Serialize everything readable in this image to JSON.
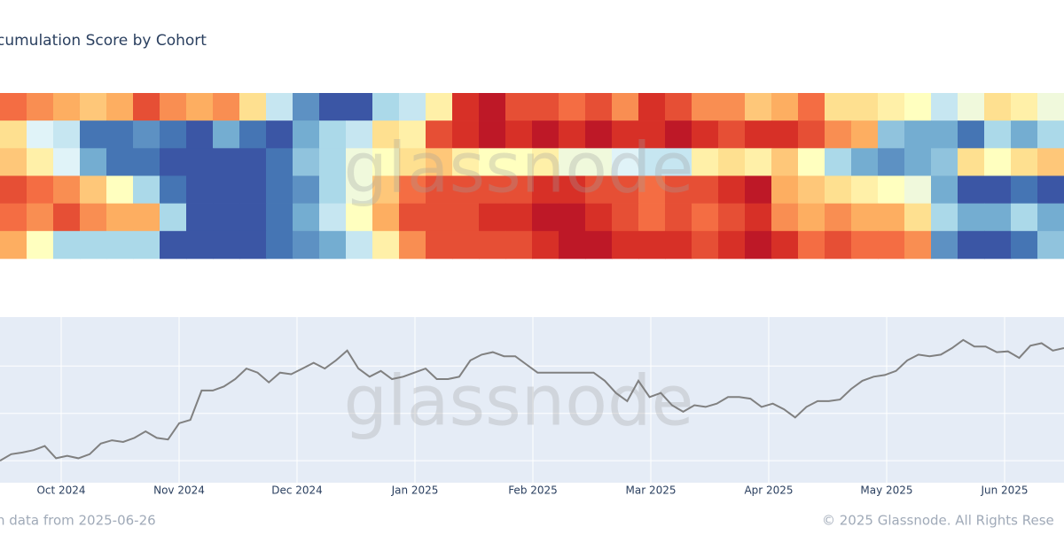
{
  "chart_data": [
    {
      "type": "heatmap",
      "title": "cumulation Score by Cohort",
      "watermark": "glassnode",
      "colorscale": [
        "#313695",
        "#4575b4",
        "#74add1",
        "#abd9e9",
        "#e0f3f8",
        "#ffffbf",
        "#fee090",
        "#fdae61",
        "#f46d43",
        "#d73027",
        "#a50026"
      ],
      "zlim": [
        0,
        1
      ],
      "z": [
        [
          0.8,
          0.75,
          0.7,
          0.65,
          0.7,
          0.85,
          0.75,
          0.7,
          0.75,
          0.6,
          0.35,
          0.15,
          0.05,
          0.05,
          0.3,
          0.35,
          0.55,
          0.9,
          0.95,
          0.85,
          0.85,
          0.8,
          0.85,
          0.75,
          0.9,
          0.85,
          0.75,
          0.75,
          0.65,
          0.7,
          0.8,
          0.6,
          0.6,
          0.55,
          0.5,
          0.35,
          0.45,
          0.6,
          0.55,
          0.45
        ],
        [
          0.6,
          0.4,
          0.35,
          0.1,
          0.1,
          0.15,
          0.1,
          0.05,
          0.2,
          0.1,
          0.05,
          0.2,
          0.3,
          0.35,
          0.6,
          0.55,
          0.85,
          0.9,
          0.95,
          0.9,
          0.95,
          0.9,
          0.95,
          0.9,
          0.9,
          0.95,
          0.9,
          0.85,
          0.9,
          0.9,
          0.85,
          0.75,
          0.7,
          0.25,
          0.2,
          0.2,
          0.1,
          0.3,
          0.2,
          0.3
        ],
        [
          0.65,
          0.55,
          0.4,
          0.2,
          0.1,
          0.1,
          0.05,
          0.05,
          0.05,
          0.05,
          0.1,
          0.25,
          0.3,
          0.45,
          0.5,
          0.6,
          0.65,
          0.55,
          0.5,
          0.5,
          0.55,
          0.45,
          0.45,
          0.4,
          0.35,
          0.35,
          0.55,
          0.6,
          0.55,
          0.65,
          0.5,
          0.3,
          0.2,
          0.15,
          0.2,
          0.25,
          0.6,
          0.5,
          0.6,
          0.65
        ],
        [
          0.85,
          0.8,
          0.75,
          0.65,
          0.5,
          0.3,
          0.1,
          0.05,
          0.05,
          0.05,
          0.1,
          0.15,
          0.3,
          0.45,
          0.65,
          0.8,
          0.85,
          0.85,
          0.85,
          0.85,
          0.9,
          0.9,
          0.85,
          0.85,
          0.8,
          0.85,
          0.85,
          0.9,
          0.95,
          0.7,
          0.65,
          0.6,
          0.55,
          0.5,
          0.45,
          0.2,
          0.05,
          0.05,
          0.1,
          0.05
        ],
        [
          0.8,
          0.75,
          0.85,
          0.75,
          0.7,
          0.7,
          0.3,
          0.05,
          0.05,
          0.05,
          0.1,
          0.2,
          0.35,
          0.5,
          0.7,
          0.85,
          0.85,
          0.85,
          0.9,
          0.9,
          0.95,
          0.95,
          0.9,
          0.85,
          0.8,
          0.85,
          0.8,
          0.85,
          0.9,
          0.75,
          0.7,
          0.75,
          0.7,
          0.7,
          0.6,
          0.3,
          0.2,
          0.2,
          0.3,
          0.2
        ],
        [
          0.7,
          0.5,
          0.3,
          0.3,
          0.3,
          0.3,
          0.05,
          0.05,
          0.05,
          0.05,
          0.1,
          0.15,
          0.2,
          0.35,
          0.55,
          0.75,
          0.85,
          0.85,
          0.85,
          0.85,
          0.9,
          0.95,
          0.95,
          0.9,
          0.9,
          0.9,
          0.85,
          0.9,
          0.95,
          0.9,
          0.8,
          0.85,
          0.8,
          0.8,
          0.75,
          0.15,
          0.05,
          0.05,
          0.1,
          0.25
        ]
      ]
    },
    {
      "type": "line",
      "watermark": "glassnode",
      "color": "#808080",
      "values": [
        60000,
        62760,
        63450,
        64480,
        66210,
        61030,
        62070,
        61030,
        62760,
        67240,
        68620,
        67930,
        69650,
        72410,
        69650,
        68960,
        75860,
        77240,
        89650,
        89650,
        91380,
        94480,
        98960,
        97240,
        93100,
        97240,
        96550,
        98960,
        101380,
        98960,
        102410,
        106550,
        98960,
        95520,
        97930,
        94480,
        95520,
        97240,
        98960,
        94480,
        94480,
        95520,
        102410,
        104820,
        105860,
        104140,
        104140,
        100690,
        97240,
        97240,
        97240,
        97240,
        97240,
        97240,
        93790,
        88620,
        85170,
        93790,
        86890,
        88620,
        83450,
        80690,
        83450,
        82760,
        84140,
        86890,
        86890,
        86210,
        82760,
        84140,
        81720,
        78270,
        82760,
        85170,
        85170,
        85860,
        90340,
        93790,
        95520,
        96210,
        97930,
        102410,
        104820,
        104140,
        104820,
        107580,
        111030,
        108270,
        108270,
        105860,
        106210,
        103450,
        108620,
        109650,
        106550,
        107580
      ],
      "ylim": [
        50700,
        120700
      ],
      "ygrid": [
        60000,
        80000,
        100000
      ],
      "xticks": [
        "Oct 2024",
        "Nov 2024",
        "Dec 2024",
        "Jan 2025",
        "Feb 2025",
        "Mar 2025",
        "Apr 2025",
        "May 2025",
        "Jun 2025"
      ],
      "footer_left": "n data from 2025-06-26",
      "footer_right": "© 2025 Glassnode. All Rights Rese"
    }
  ]
}
